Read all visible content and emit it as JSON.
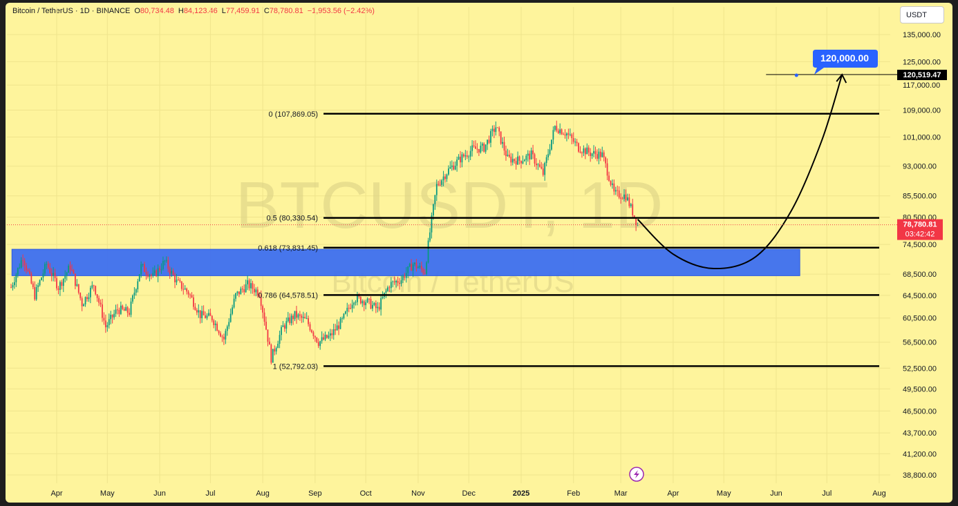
{
  "legend": {
    "symbol": "Bitcoin / TetherUS · 1D · BINANCE",
    "open_label": "O",
    "open": "80,734.48",
    "high_label": "H",
    "high": "84,123.46",
    "low_label": "L",
    "low": "77,459.91",
    "close_label": "C",
    "close": "78,780.81",
    "change": "−1,953.56 (−2.42%)"
  },
  "currency": "USDT",
  "watermark": {
    "ticker": "BTCUSDT, 1D",
    "name": "Bitcoin / TetherUS"
  },
  "price_badge": {
    "price": "78,780.81",
    "countdown": "03:42:42"
  },
  "target_badge": {
    "label": "120,000.00"
  },
  "target_price_label": "120,519.47",
  "bolt_icon": "lightning-icon",
  "colors": {
    "background": "#fef49c",
    "up": "#089981",
    "down": "#f23645",
    "zone": "#3d6ff0",
    "badge_blue": "#2962ff",
    "line": "#000000"
  },
  "chart_data": {
    "type": "candlestick",
    "y_scale": "log",
    "ylim": [
      37500,
      148000
    ],
    "y_ticks": [
      "135,000.00",
      "125,000.00",
      "117,000.00",
      "109,000.00",
      "101,000.00",
      "93,000.00",
      "85,500.00",
      "80,500.00",
      "74,500.00",
      "68,500.00",
      "64,500.00",
      "60,500.00",
      "56,500.00",
      "52,500.00",
      "49,500.00",
      "46,500.00",
      "43,700.00",
      "41,200.00",
      "38,800.00"
    ],
    "y_tick_values": [
      135000,
      125000,
      117000,
      109000,
      101000,
      93000,
      85500,
      80500,
      74500,
      68500,
      64500,
      60500,
      56500,
      52500,
      49500,
      46500,
      43700,
      41200,
      38800
    ],
    "x_ticks": [
      "Apr",
      "May",
      "Jun",
      "Jul",
      "Aug",
      "Sep",
      "Oct",
      "Nov",
      "Dec",
      "2025",
      "Feb",
      "Mar",
      "Apr",
      "May",
      "Jun",
      "Jul",
      "Aug"
    ],
    "x_tick_dates": [
      "2024-04-01",
      "2024-05-01",
      "2024-06-01",
      "2024-07-01",
      "2024-08-01",
      "2024-09-01",
      "2024-10-01",
      "2024-11-01",
      "2024-12-01",
      "2025-01-01",
      "2025-02-01",
      "2025-03-01",
      "2025-04-01",
      "2025-05-01",
      "2025-06-01",
      "2025-07-01",
      "2025-08-01"
    ],
    "date_range": [
      "2024-03-05",
      "2025-08-10"
    ],
    "fib_levels": [
      {
        "label": "0 (107,869.05)",
        "ratio": 0,
        "price": 107869.05
      },
      {
        "label": "0.5 (80,330.54)",
        "ratio": 0.5,
        "price": 80330.54
      },
      {
        "label": "0.618 (73,831.45)",
        "ratio": 0.618,
        "price": 73831.45
      },
      {
        "label": "0.786 (64,578.51)",
        "ratio": 0.786,
        "price": 64578.51
      },
      {
        "label": "1 (52,792.03)",
        "ratio": 1,
        "price": 52792.03
      }
    ],
    "fib_start_date": "2024-09-06",
    "fib_end_date": "2025-08-01",
    "zone": {
      "top": 73500,
      "bottom": 68200,
      "start": "2024-03-10",
      "end": "2025-06-15"
    },
    "projection": {
      "path": [
        {
          "date": "2025-03-11",
          "price": 80000
        },
        {
          "date": "2025-04-01",
          "price": 72500
        },
        {
          "date": "2025-04-25",
          "price": 69600
        },
        {
          "date": "2025-05-20",
          "price": 72000
        },
        {
          "date": "2025-06-10",
          "price": 82000
        },
        {
          "date": "2025-06-28",
          "price": 100000
        },
        {
          "date": "2025-07-10",
          "price": 120519.47
        }
      ]
    },
    "target_line": {
      "price": 120519.47,
      "start": "2025-05-26",
      "end": "2025-08-10"
    },
    "last_price": 78780.81,
    "candles": [
      {
        "t": "2024-03-05",
        "p": 66000
      },
      {
        "t": "2024-03-12",
        "p": 72000
      },
      {
        "t": "2024-03-19",
        "p": 64500
      },
      {
        "t": "2024-03-26",
        "p": 70500
      },
      {
        "t": "2024-04-02",
        "p": 66000
      },
      {
        "t": "2024-04-09",
        "p": 70000
      },
      {
        "t": "2024-04-16",
        "p": 63000
      },
      {
        "t": "2024-04-23",
        "p": 66500
      },
      {
        "t": "2024-04-30",
        "p": 59000
      },
      {
        "t": "2024-05-07",
        "p": 62000
      },
      {
        "t": "2024-05-14",
        "p": 61500
      },
      {
        "t": "2024-05-21",
        "p": 70000
      },
      {
        "t": "2024-05-28",
        "p": 68000
      },
      {
        "t": "2024-06-04",
        "p": 71000
      },
      {
        "t": "2024-06-11",
        "p": 67000
      },
      {
        "t": "2024-06-18",
        "p": 65000
      },
      {
        "t": "2024-06-25",
        "p": 61000
      },
      {
        "t": "2024-07-02",
        "p": 60500
      },
      {
        "t": "2024-07-09",
        "p": 57000
      },
      {
        "t": "2024-07-16",
        "p": 64500
      },
      {
        "t": "2024-07-23",
        "p": 66500
      },
      {
        "t": "2024-07-30",
        "p": 65000
      },
      {
        "t": "2024-08-06",
        "p": 54000
      },
      {
        "t": "2024-08-13",
        "p": 59000
      },
      {
        "t": "2024-08-20",
        "p": 61000
      },
      {
        "t": "2024-08-27",
        "p": 60000
      },
      {
        "t": "2024-09-03",
        "p": 56500
      },
      {
        "t": "2024-09-10",
        "p": 57500
      },
      {
        "t": "2024-09-17",
        "p": 60000
      },
      {
        "t": "2024-09-24",
        "p": 64000
      },
      {
        "t": "2024-10-01",
        "p": 63500
      },
      {
        "t": "2024-10-08",
        "p": 62000
      },
      {
        "t": "2024-10-15",
        "p": 66500
      },
      {
        "t": "2024-10-22",
        "p": 67500
      },
      {
        "t": "2024-10-29",
        "p": 70500
      },
      {
        "t": "2024-11-05",
        "p": 69000
      },
      {
        "t": "2024-11-12",
        "p": 88000
      },
      {
        "t": "2024-11-19",
        "p": 92000
      },
      {
        "t": "2024-11-26",
        "p": 95000
      },
      {
        "t": "2024-12-03",
        "p": 97500
      },
      {
        "t": "2024-12-10",
        "p": 98000
      },
      {
        "t": "2024-12-17",
        "p": 104000
      },
      {
        "t": "2024-12-24",
        "p": 95000
      },
      {
        "t": "2024-12-31",
        "p": 94500
      },
      {
        "t": "2025-01-07",
        "p": 96000
      },
      {
        "t": "2025-01-14",
        "p": 91000
      },
      {
        "t": "2025-01-21",
        "p": 104000
      },
      {
        "t": "2025-01-28",
        "p": 102000
      },
      {
        "t": "2025-02-04",
        "p": 98000
      },
      {
        "t": "2025-02-11",
        "p": 96500
      },
      {
        "t": "2025-02-18",
        "p": 96000
      },
      {
        "t": "2025-02-25",
        "p": 86000
      },
      {
        "t": "2025-03-04",
        "p": 85500
      },
      {
        "t": "2025-03-11",
        "p": 78780.81
      }
    ]
  }
}
